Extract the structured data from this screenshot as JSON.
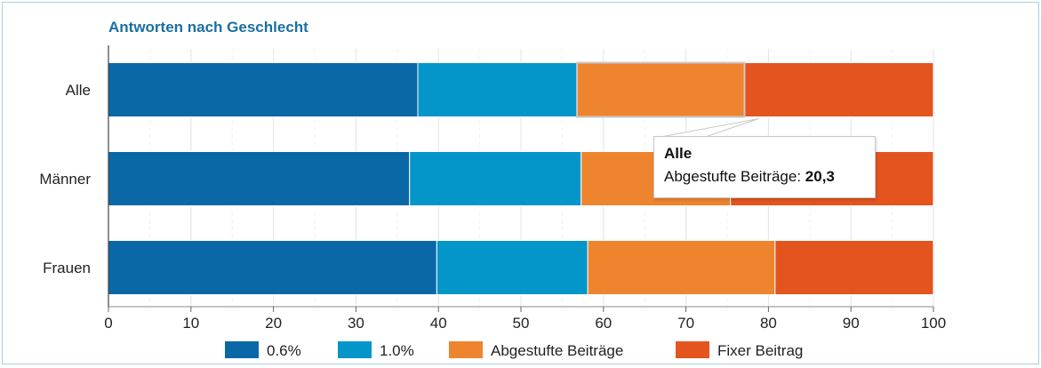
{
  "chart_data": {
    "type": "bar",
    "orientation": "horizontal",
    "stacked": true,
    "title": "Antworten nach Geschlecht",
    "categories": [
      "Alle",
      "Männer",
      "Frauen"
    ],
    "series": [
      {
        "name": "0.6%",
        "color": "#0b68a6",
        "values": [
          37.5,
          36.5,
          39.8
        ]
      },
      {
        "name": "1.0%",
        "color": "#0495c9",
        "values": [
          19.3,
          20.8,
          18.3
        ]
      },
      {
        "name": "Abgestufte Beiträge",
        "color": "#ef842e",
        "values": [
          20.3,
          18.1,
          22.7
        ]
      },
      {
        "name": "Fixer Beitrag",
        "color": "#e4541f",
        "values": [
          22.9,
          24.6,
          19.2
        ]
      }
    ],
    "xlim": [
      0,
      100
    ],
    "xticks": [
      0,
      10,
      20,
      30,
      40,
      50,
      60,
      70,
      80,
      90,
      100
    ],
    "grid": true,
    "legend": "bottom",
    "xlabel": "",
    "ylabel": ""
  },
  "tooltip": {
    "title": "Alle",
    "series_label": "Abgestufte Beiträge:",
    "value": "20,3"
  }
}
